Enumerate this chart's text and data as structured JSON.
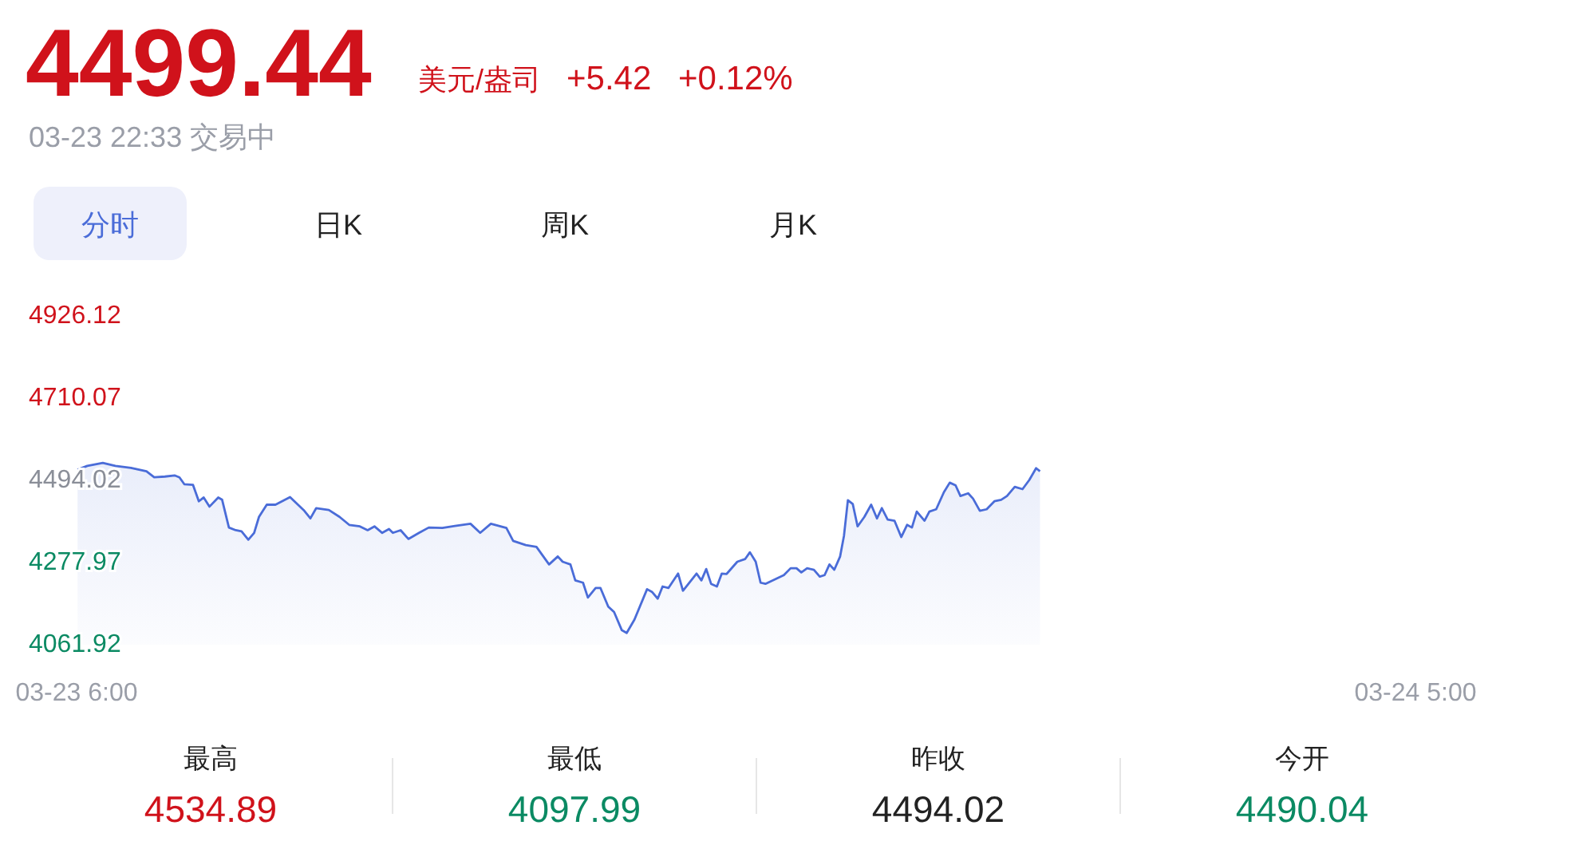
{
  "chart_data": {
    "type": "area",
    "title": "4499.44",
    "subtitle": "03-23 22:33 交易中",
    "annotations": [
      "美元/盎司",
      "+5.42",
      "+0.12%",
      "分时",
      "日K",
      "周K",
      "月K",
      "最高",
      "4534.89",
      "最低",
      "4097.99",
      "昨收",
      "4494.02",
      "今开",
      "4490.04"
    ],
    "x": [
      "--03-23T06:01",
      "--03-23T06:11",
      "--03-23T06:27",
      "--03-23T06:40",
      "--03-23T06:56",
      "--03-23T07:12",
      "--03-23T07:20",
      "--03-23T07:31",
      "--03-23T07:41",
      "--03-23T07:46",
      "--03-23T07:51",
      "--03-23T08:00",
      "--03-23T08:06",
      "--03-23T08:11",
      "--03-23T08:17",
      "--03-23T08:26",
      "--03-23T08:30",
      "--03-23T08:37",
      "--03-23T08:44",
      "--03-23T08:50",
      "--03-23T08:57",
      "--03-23T09:03",
      "--03-23T09:08",
      "--03-23T09:16",
      "--03-23T09:25",
      "--03-23T09:40",
      "--03-23T09:54",
      "--03-23T10:01",
      "--03-23T10:07",
      "--03-23T10:20",
      "--03-23T10:31",
      "--03-23T10:41",
      "--03-23T10:52",
      "--03-23T11:00",
      "--03-23T11:07",
      "--03-23T11:15",
      "--03-23T11:22",
      "--03-23T11:26",
      "--03-23T11:34",
      "--03-23T11:42",
      "--03-23T11:53",
      "--03-23T12:03",
      "--03-23T12:17",
      "--03-23T12:30",
      "--03-23T12:46",
      "--03-23T12:56",
      "--03-23T13:07",
      "--03-23T13:23",
      "--03-23T13:30",
      "--03-23T13:43",
      "--03-23T13:54",
      "--03-23T14:07",
      "--03-23T14:16",
      "--03-23T14:21",
      "--03-23T14:29",
      "--03-23T14:34",
      "--03-23T14:42",
      "--03-23T14:47",
      "--03-23T14:55",
      "--03-23T15:00",
      "--03-23T15:08",
      "--03-23T15:14",
      "--03-23T15:22",
      "--03-23T15:27",
      "--03-23T15:35",
      "--03-23T15:48",
      "--03-23T15:53",
      "--03-23T15:59",
      "--03-23T16:04",
      "--03-23T16:10",
      "--03-23T16:20",
      "--03-23T16:25",
      "--03-23T16:39",
      "--03-23T16:44",
      "--03-23T16:49",
      "--03-23T16:54",
      "--03-23T17:00",
      "--03-23T17:05",
      "--03-23T17:10",
      "--03-23T17:21",
      "--03-23T17:29",
      "--03-23T17:34",
      "--03-23T17:40",
      "--03-23T17:45",
      "--03-23T17:50",
      "--03-23T18:09",
      "--03-23T18:16",
      "--03-23T18:22",
      "--03-23T18:27",
      "--03-23T18:33",
      "--03-23T18:40",
      "--03-23T18:46",
      "--03-23T18:51",
      "--03-23T18:56",
      "--03-23T19:01",
      "--03-23T19:07",
      "--03-23T19:11",
      "--03-23T19:15",
      "--03-23T19:20",
      "--03-23T19:25",
      "--03-23T19:32",
      "--03-23T19:39",
      "--03-23T19:45",
      "--03-23T19:50",
      "--03-23T19:56",
      "--03-23T20:03",
      "--03-23T20:10",
      "--03-23T20:16",
      "--03-23T20:21",
      "--03-23T20:26",
      "--03-23T20:34",
      "--03-23T20:39",
      "--03-23T20:46",
      "--03-23T20:54",
      "--03-23T21:00",
      "--03-23T21:06",
      "--03-23T21:11",
      "--03-23T21:19",
      "--03-23T21:24",
      "--03-23T21:31",
      "--03-23T21:38",
      "--03-23T21:46",
      "--03-23T21:53",
      "--03-23T21:59",
      "--03-23T22:07",
      "--03-23T22:15",
      "--03-23T22:22",
      "--03-23T22:29",
      "--03-23T22:33"
    ],
    "series": [
      {
        "color": "#4a6cd8",
        "values": [
          4522,
          4532,
          4540,
          4532,
          4527,
          4518,
          4502,
          4504,
          4507,
          4502,
          4484,
          4482,
          4439,
          4449,
          4425,
          4449,
          4443,
          4370,
          4363,
          4360,
          4338,
          4356,
          4398,
          4430,
          4430,
          4450,
          4416,
          4394,
          4421,
          4416,
          4398,
          4377,
          4373,
          4363,
          4373,
          4356,
          4366,
          4356,
          4363,
          4340,
          4356,
          4370,
          4369,
          4374,
          4380,
          4356,
          4380,
          4369,
          4335,
          4324,
          4319,
          4273,
          4294,
          4280,
          4273,
          4231,
          4225,
          4186,
          4211,
          4211,
          4162,
          4148,
          4100,
          4093,
          4128,
          4208,
          4201,
          4183,
          4215,
          4211,
          4249,
          4204,
          4249,
          4231,
          4261,
          4222,
          4215,
          4249,
          4248,
          4280,
          4287,
          4305,
          4280,
          4225,
          4222,
          4245,
          4263,
          4263,
          4252,
          4263,
          4259,
          4241,
          4245,
          4273,
          4259,
          4294,
          4349,
          4442,
          4432,
          4373,
          4398,
          4430,
          4394,
          4421,
          4391,
          4388,
          4345,
          4377,
          4370,
          4412,
          4388,
          4412,
          4418,
          4463,
          4488,
          4481,
          4453,
          4460,
          4446,
          4414,
          4418,
          4439,
          4443,
          4453,
          4477,
          4471,
          4495,
          4526,
          4518
        ]
      }
    ],
    "xlim": [
      "--03-23T06:00",
      "--03-24T05:00"
    ],
    "xticks": [
      {
        "value": "--03-23T06:00",
        "label": "03-23 6:00"
      },
      {
        "value": "--03-24T05:00",
        "label": "03-24 5:00"
      }
    ],
    "ylim": [
      4061.92,
      4926.12
    ],
    "yticks": [
      4061.92,
      4277.97,
      4494.02,
      4710.07,
      4926.12
    ]
  }
}
